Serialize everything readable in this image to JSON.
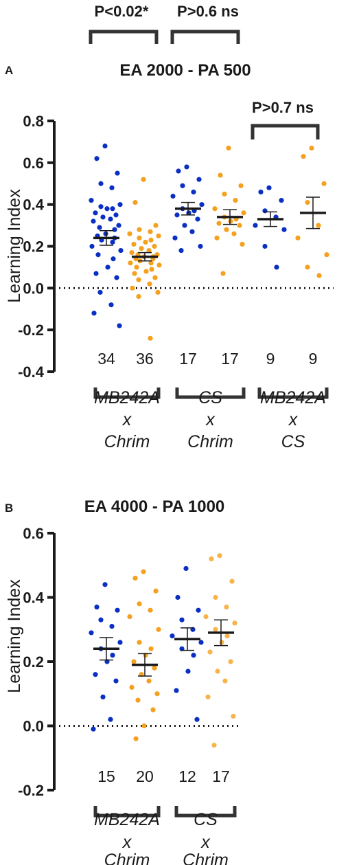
{
  "colors": {
    "blue": "#0a2fc4",
    "orange": "#f5a01e",
    "orange_light": "#f8b44a",
    "ink": "#1a1a1a"
  },
  "top_stats": [
    {
      "label": "P<0.02*"
    },
    {
      "label": "P>0.6 ns"
    }
  ],
  "chart_data": [
    {
      "type": "scatter",
      "panel_label": "A",
      "title": "EA 2000 - PA 500",
      "ylabel": "Learning Index",
      "ylim": [
        -0.4,
        0.8
      ],
      "yticks": [
        "0.8",
        "0.6",
        "0.4",
        "0.2",
        "0.0",
        "-0.2",
        "-0.4"
      ],
      "ytick_values": [
        0.8,
        0.6,
        0.4,
        0.2,
        0.0,
        -0.2,
        -0.4
      ],
      "zero_line": "dotted",
      "stat_annotations": [
        {
          "label": "P>0.7 ns",
          "between": [
            4,
            5
          ]
        }
      ],
      "series": [
        {
          "color": "blue",
          "n": "34",
          "mean": 0.24,
          "sem": 0.035,
          "values": [
            0.68,
            0.62,
            0.55,
            0.5,
            0.48,
            0.42,
            0.4,
            0.39,
            0.38,
            0.38,
            0.36,
            0.35,
            0.34,
            0.33,
            0.32,
            0.3,
            0.29,
            0.28,
            0.26,
            0.25,
            0.24,
            0.23,
            0.22,
            0.2,
            0.18,
            0.16,
            0.14,
            0.1,
            0.07,
            0.05,
            -0.02,
            -0.08,
            -0.12,
            -0.18
          ]
        },
        {
          "color": "orange",
          "n": "36",
          "mean": 0.15,
          "sem": 0.02,
          "values": [
            0.52,
            0.41,
            0.3,
            0.28,
            0.27,
            0.26,
            0.25,
            0.24,
            0.23,
            0.22,
            0.21,
            0.2,
            0.19,
            0.18,
            0.17,
            0.16,
            0.16,
            0.15,
            0.15,
            0.14,
            0.14,
            0.13,
            0.12,
            0.12,
            0.11,
            0.1,
            0.09,
            0.08,
            0.07,
            0.05,
            0.04,
            0.02,
            0.0,
            -0.02,
            -0.04,
            -0.24
          ]
        },
        {
          "color": "blue",
          "n": "17",
          "mean": 0.38,
          "sem": 0.03,
          "values": [
            0.58,
            0.56,
            0.52,
            0.49,
            0.46,
            0.44,
            0.4,
            0.38,
            0.37,
            0.36,
            0.35,
            0.33,
            0.3,
            0.27,
            0.24,
            0.2,
            0.18
          ]
        },
        {
          "color": "orange",
          "n": "17",
          "mean": 0.34,
          "sem": 0.035,
          "values": [
            0.67,
            0.54,
            0.49,
            0.45,
            0.42,
            0.38,
            0.36,
            0.34,
            0.33,
            0.32,
            0.31,
            0.3,
            0.28,
            0.26,
            0.24,
            0.21,
            0.07
          ]
        },
        {
          "color": "blue",
          "n": "9",
          "mean": 0.33,
          "sem": 0.035,
          "values": [
            0.48,
            0.46,
            0.42,
            0.37,
            0.34,
            0.3,
            0.28,
            0.2,
            0.1
          ]
        },
        {
          "color": "orange",
          "n": "9",
          "mean": 0.36,
          "sem": 0.075,
          "values": [
            0.67,
            0.63,
            0.5,
            0.41,
            0.3,
            0.24,
            0.16,
            0.1,
            0.06
          ]
        }
      ],
      "groups": [
        {
          "line1": "MB242A",
          "line2": "x",
          "line3": "Chrim",
          "cols": [
            0,
            1
          ]
        },
        {
          "line1": "CS",
          "line2": "x",
          "line3": "Chrim",
          "cols": [
            2,
            3
          ]
        },
        {
          "line1": "MB242A",
          "line2": "x",
          "line3": "CS",
          "cols": [
            4,
            5
          ]
        }
      ]
    },
    {
      "type": "scatter",
      "panel_label": "B",
      "title": "EA 4000 - PA 1000",
      "ylabel": "Learning Index",
      "ylim": [
        -0.2,
        0.6
      ],
      "yticks": [
        "0.6",
        "0.4",
        "0.2",
        "0.0",
        "-0.2"
      ],
      "ytick_values": [
        0.6,
        0.4,
        0.2,
        0.0,
        -0.2
      ],
      "zero_line": "dotted",
      "series": [
        {
          "color": "blue",
          "n": "15",
          "mean": 0.24,
          "sem": 0.035,
          "values": [
            0.44,
            0.37,
            0.36,
            0.33,
            0.31,
            0.29,
            0.26,
            0.24,
            0.22,
            0.2,
            0.16,
            0.14,
            0.09,
            0.02,
            -0.01
          ]
        },
        {
          "color": "orange",
          "n": "20",
          "mean": 0.19,
          "sem": 0.035,
          "values": [
            0.48,
            0.46,
            0.42,
            0.38,
            0.36,
            0.34,
            0.3,
            0.26,
            0.24,
            0.22,
            0.2,
            0.18,
            0.16,
            0.14,
            0.12,
            0.1,
            0.08,
            0.05,
            0.0,
            -0.04
          ]
        },
        {
          "color": "blue",
          "n": "12",
          "mean": 0.27,
          "sem": 0.035,
          "values": [
            0.49,
            0.4,
            0.36,
            0.33,
            0.3,
            0.28,
            0.26,
            0.24,
            0.22,
            0.17,
            0.11,
            0.02
          ]
        },
        {
          "color": "orange_light",
          "n": "17",
          "mean": 0.29,
          "sem": 0.04,
          "values": [
            0.53,
            0.52,
            0.45,
            0.4,
            0.37,
            0.34,
            0.32,
            0.3,
            0.28,
            0.26,
            0.23,
            0.2,
            0.17,
            0.14,
            0.09,
            0.03,
            -0.06
          ]
        }
      ],
      "groups": [
        {
          "line1": "MB242A",
          "line2": "x",
          "line3": "Chrim",
          "cols": [
            0,
            1
          ]
        },
        {
          "line1": "CS",
          "line2": "x",
          "line3": "Chrim",
          "cols": [
            2,
            3
          ]
        }
      ]
    }
  ]
}
